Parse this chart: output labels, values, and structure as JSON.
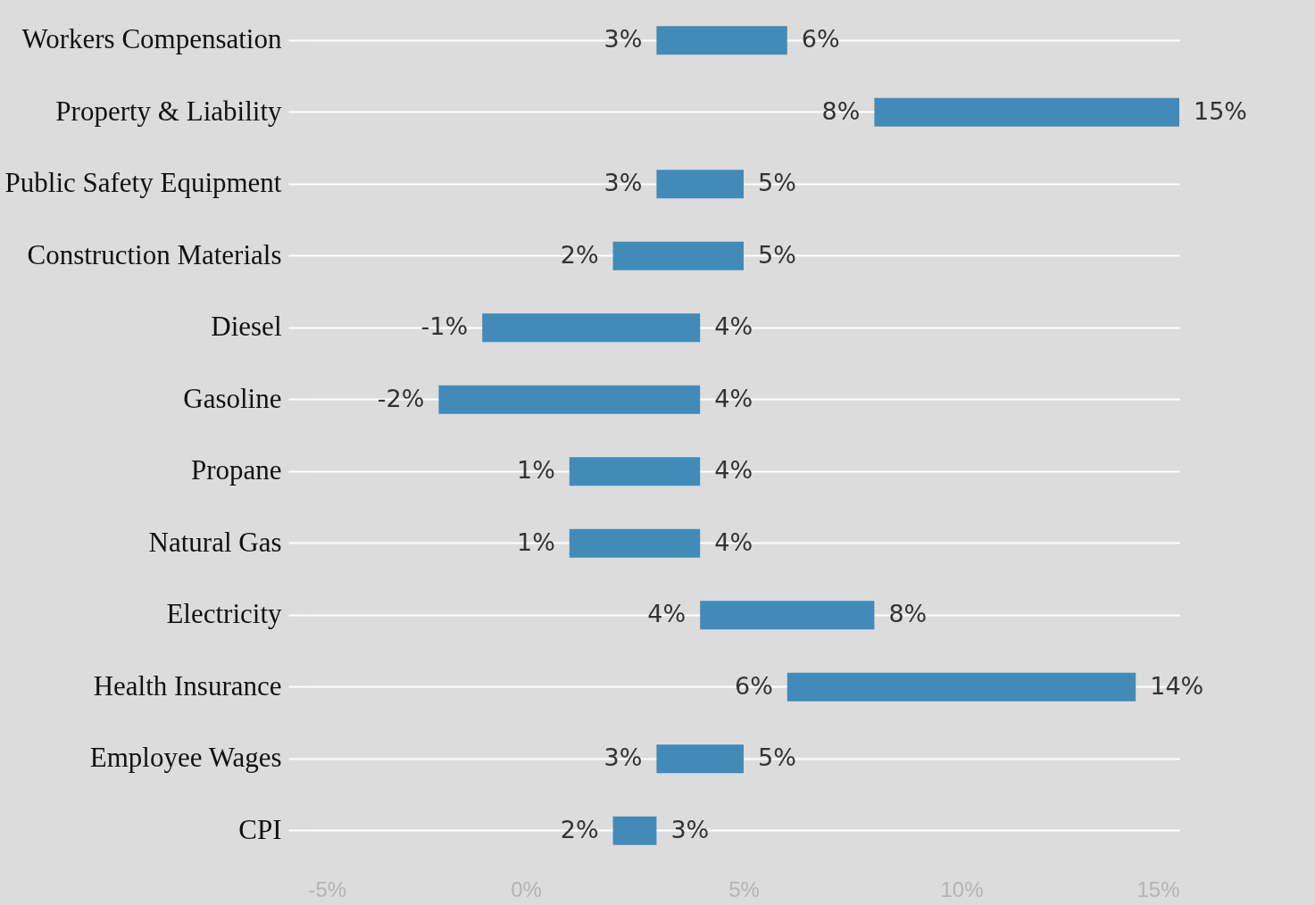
{
  "chart_data": {
    "type": "bar",
    "orientation": "horizontal",
    "categories": [
      "Workers Compensation",
      "Property & Liability",
      "Public Safety Equipment",
      "Construction Materials",
      "Diesel",
      "Gasoline",
      "Propane",
      "Natural Gas",
      "Electricity",
      "Health Insurance",
      "Employee Wages",
      "CPI"
    ],
    "base": [
      3,
      8,
      3,
      2,
      -1,
      -2,
      1,
      1,
      4,
      6,
      3,
      2
    ],
    "values": [
      3,
      7,
      2,
      3,
      5,
      6,
      3,
      3,
      4,
      8,
      2,
      1
    ],
    "value_labels": [
      "6%",
      "15%",
      "5%",
      "5%",
      "4%",
      "4%",
      "4%",
      "4%",
      "8%",
      "14%",
      "5%",
      "3%"
    ],
    "annotations": [
      {
        "text": "3%",
        "x": 3,
        "y": "Workers Compensation"
      },
      {
        "text": "8%",
        "x": 8,
        "y": "Property & Liability"
      },
      {
        "text": "3%",
        "x": 3,
        "y": "Public Safety Equipment"
      },
      {
        "text": "2%",
        "x": 2,
        "y": "Construction Materials"
      },
      {
        "text": "-1%",
        "x": -1,
        "y": "Diesel"
      },
      {
        "text": "-2%",
        "x": -2,
        "y": "Gasoline"
      },
      {
        "text": "1%",
        "x": 1,
        "y": "Propane"
      },
      {
        "text": "1%",
        "x": 1,
        "y": "Natural Gas"
      },
      {
        "text": "4%",
        "x": 4,
        "y": "Electricity"
      },
      {
        "text": "6%",
        "x": 6,
        "y": "Health Insurance"
      },
      {
        "text": "3%",
        "x": 3,
        "y": "Employee Wages"
      },
      {
        "text": "2%",
        "x": 2,
        "y": "CPI"
      }
    ],
    "color": "#428bb8",
    "xlim": [
      -5,
      15
    ],
    "xticks": [
      {
        "value": -5,
        "label": "-5%"
      },
      {
        "value": 0,
        "label": "0%"
      },
      {
        "value": 5,
        "label": "5%"
      },
      {
        "value": 10,
        "label": "10%"
      },
      {
        "value": 15,
        "label": "15%"
      }
    ],
    "grid": "y"
  }
}
